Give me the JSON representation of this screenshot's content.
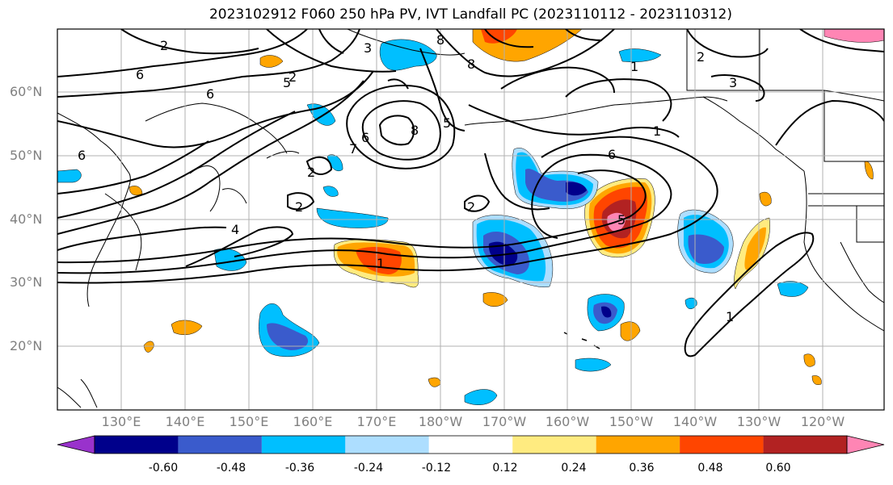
{
  "title": "2023102912 F060 250 hPa PV, IVT Landfall PC (2023110112 - 2023110312)",
  "lat_labels": [
    "60°N",
    "50°N",
    "40°N",
    "30°N",
    "20°N"
  ],
  "lon_labels": [
    "130°E",
    "140°E",
    "150°E",
    "160°E",
    "170°E",
    "180°W",
    "170°W",
    "160°W",
    "150°W",
    "140°W",
    "130°W",
    "120°W"
  ],
  "contour_labels": [
    "2",
    "6",
    "5",
    "6",
    "6",
    "3",
    "8",
    "8",
    "7",
    "5",
    "8",
    "6",
    "2",
    "2",
    "2",
    "2",
    "4",
    "1",
    "1",
    "6",
    "5",
    "1",
    "2",
    "3",
    "1"
  ],
  "colorbar": {
    "ticks": [
      "-0.60",
      "-0.48",
      "-0.36",
      "-0.24",
      "-0.12",
      "0.12",
      "0.24",
      "0.36",
      "0.48",
      "0.60"
    ],
    "colors": [
      "#9932CC",
      "#00008B",
      "#3A5BCC",
      "#00BFFF",
      "#ADDEFF",
      "#FFFFFF",
      "#FFEB80",
      "#FFA500",
      "#FF4500",
      "#B22222",
      "#FF85B4"
    ]
  },
  "colors": {
    "neg_dark": "#00008B",
    "neg_mid": "#3A5BCC",
    "neg_light": "#00BFFF",
    "pos_light": "#FFEB80",
    "pos_mid": "#FFA500",
    "pos_strong": "#FF4500",
    "pos_dark": "#B22222",
    "pos_max": "#FF85B4"
  }
}
